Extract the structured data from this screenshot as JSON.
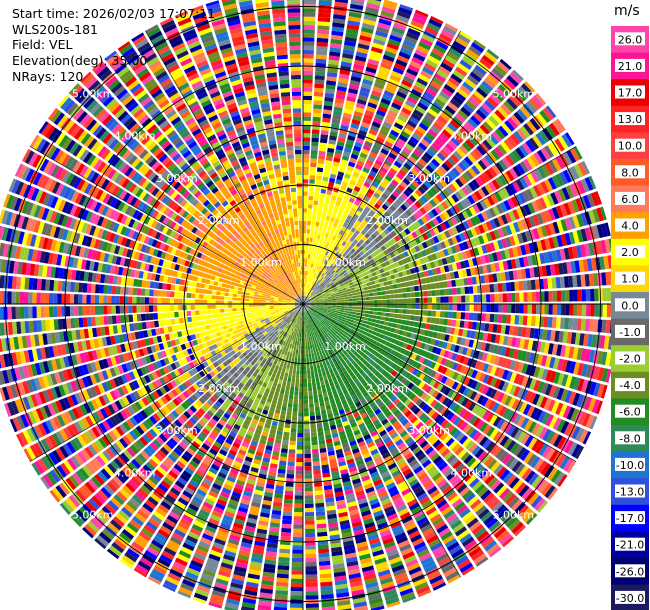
{
  "header": {
    "start_time": "Start time: 2026/02/03 17:07:11",
    "site": "WLS200s-181",
    "field": "Field: VEL",
    "elevation": "Elevation(deg): 35.00",
    "nrays": "NRays: 120"
  },
  "chart_data": {
    "type": "heatmap",
    "projection": "polar-ppi",
    "field": "VEL",
    "units": "m/s",
    "nrays": 120,
    "range_rings_km": [
      1,
      2,
      3,
      4,
      5
    ],
    "range_ring_labels": [
      "1.00km",
      "2.00km",
      "3.00km",
      "4.00km",
      "5.00km"
    ],
    "max_range_km": 5.3,
    "noise_beyond_km": 2.45,
    "colorbar": {
      "unit_label": "m/s",
      "ticks": [
        "26.0",
        "21.0",
        "17.0",
        "13.0",
        "10.0",
        "8.0",
        "6.0",
        "4.0",
        "2.0",
        "1.0",
        "0.0",
        "-1.0",
        "-2.0",
        "-4.0",
        "-6.0",
        "-8.0",
        "-10.0",
        "-13.0",
        "-17.0",
        "-21.0",
        "-26.0",
        "-30.0"
      ],
      "colors": [
        "#ff44aa",
        "#ff1493",
        "#ee0000",
        "#ff2222",
        "#ff4040",
        "#ff5a28",
        "#ff7a5a",
        "#ffa000",
        "#ffff00",
        "#ffd700",
        "#778899",
        "#696969",
        "#9acd32",
        "#6b8e23",
        "#228b22",
        "#2e8b57",
        "#1e74d0",
        "#3050e0",
        "#0000ff",
        "#0000a0",
        "#000070",
        "#1a1a60"
      ]
    }
  }
}
